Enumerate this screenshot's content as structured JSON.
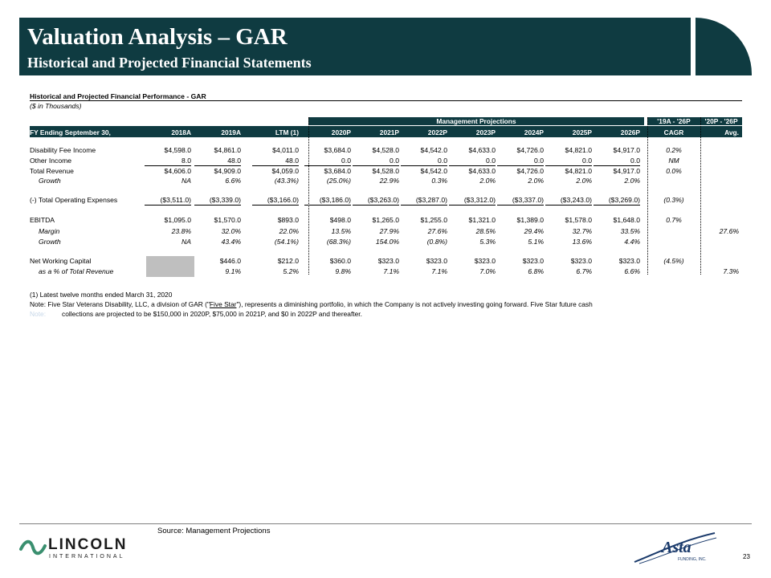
{
  "header": {
    "title": "Valuation Analysis – GAR",
    "subtitle": "Historical and Projected Financial Statements"
  },
  "table": {
    "title": "Historical and Projected Financial Performance - GAR",
    "units": "($ in Thousands)",
    "band_projections": "Management Projections",
    "band_cagr": "'19A - '26P",
    "band_avg": "'20P - '26P",
    "row_label_header": "FY Ending September 30,",
    "columns": [
      "2018A",
      "2019A",
      "LTM (1)",
      "2020P",
      "2021P",
      "2022P",
      "2023P",
      "2024P",
      "2025P",
      "2026P"
    ],
    "cagr_header": "CAGR",
    "avg_header": "Avg.",
    "rows": [
      {
        "label": "Disability Fee Income",
        "values": [
          "$4,598.0",
          "$4,861.0",
          "$4,011.0",
          "$3,684.0",
          "$4,528.0",
          "$4,542.0",
          "$4,633.0",
          "$4,726.0",
          "$4,821.0",
          "$4,917.0"
        ],
        "cagr": "0.2%",
        "avg": ""
      },
      {
        "label": "Other Income",
        "values": [
          "8.0",
          "48.0",
          "48.0",
          "0.0",
          "0.0",
          "0.0",
          "0.0",
          "0.0",
          "0.0",
          "0.0"
        ],
        "cagr": "NM",
        "avg": ""
      },
      {
        "label": "Total Revenue",
        "values": [
          "$4,606.0",
          "$4,909.0",
          "$4,059.0",
          "$3,684.0",
          "$4,528.0",
          "$4,542.0",
          "$4,633.0",
          "$4,726.0",
          "$4,821.0",
          "$4,917.0"
        ],
        "cagr": "0.0%",
        "avg": ""
      },
      {
        "label": "Growth",
        "values": [
          "NA",
          "6.6%",
          "(43.3%)",
          "(25.0%)",
          "22.9%",
          "0.3%",
          "2.0%",
          "2.0%",
          "2.0%",
          "2.0%"
        ],
        "cagr": "",
        "avg": ""
      },
      {
        "label": "(-) Total Operating Expenses",
        "values": [
          "($3,511.0)",
          "($3,339.0)",
          "($3,166.0)",
          "($3,186.0)",
          "($3,263.0)",
          "($3,287.0)",
          "($3,312.0)",
          "($3,337.0)",
          "($3,243.0)",
          "($3,269.0)"
        ],
        "cagr": "(0.3%)",
        "avg": ""
      },
      {
        "label": "EBITDA",
        "values": [
          "$1,095.0",
          "$1,570.0",
          "$893.0",
          "$498.0",
          "$1,265.0",
          "$1,255.0",
          "$1,321.0",
          "$1,389.0",
          "$1,578.0",
          "$1,648.0"
        ],
        "cagr": "0.7%",
        "avg": ""
      },
      {
        "label": "Margin",
        "values": [
          "23.8%",
          "32.0%",
          "22.0%",
          "13.5%",
          "27.9%",
          "27.6%",
          "28.5%",
          "29.4%",
          "32.7%",
          "33.5%"
        ],
        "cagr": "",
        "avg": "27.6%"
      },
      {
        "label": "Growth",
        "values": [
          "NA",
          "43.4%",
          "(54.1%)",
          "(68.3%)",
          "154.0%",
          "(0.8%)",
          "5.3%",
          "5.1%",
          "13.6%",
          "4.4%"
        ],
        "cagr": "",
        "avg": ""
      },
      {
        "label": "Net Working Capital",
        "values": [
          "",
          "$446.0",
          "$212.0",
          "$360.0",
          "$323.0",
          "$323.0",
          "$323.0",
          "$323.0",
          "$323.0",
          "$323.0"
        ],
        "cagr": "(4.5%)",
        "avg": ""
      },
      {
        "label": "as a % of Total Revenue",
        "values": [
          "",
          "9.1%",
          "5.2%",
          "9.8%",
          "7.1%",
          "7.1%",
          "7.0%",
          "6.8%",
          "6.7%",
          "6.6%"
        ],
        "cagr": "",
        "avg": "7.3%"
      }
    ]
  },
  "notes": {
    "note1": "(1) Latest twelve months ended March 31, 2020",
    "note2_before": "Note: Five Star Veterans Disability, LLC, a division of GAR (\"",
    "note2_link": "Five Star",
    "note2_after": "\"), represents a diminishing portfolio, in which the Company is not actively investing going forward.  Five Star future cash",
    "note2_line2": "collections are projected to be $150,000 in 2020P, $75,000 in 2021P, and $0 in 2022P and thereafter.",
    "ghost": "Note:"
  },
  "footer": {
    "source": "Source: Management Projections",
    "lincoln_word": "LINCOLN",
    "lincoln_sub": "INTERNATIONAL",
    "asta_word": "Asta",
    "asta_sub": "FUNDING, INC.",
    "page_number": "23"
  },
  "colors": {
    "brand_teal": "#0f3b41",
    "gray_fill": "#bfbfbf",
    "asta_navy": "#1a3a6b"
  }
}
